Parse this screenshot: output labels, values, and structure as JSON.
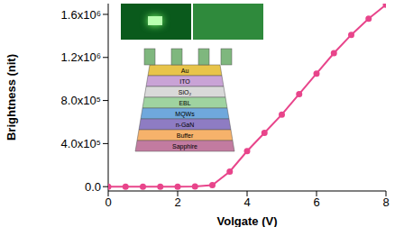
{
  "chart_data": {
    "type": "line",
    "x_label": "Volgate (V)",
    "y_label": "Brightness (nit)",
    "x": [
      0,
      0.5,
      1,
      1.5,
      2,
      2.5,
      3,
      3.5,
      4,
      4.5,
      5,
      5.5,
      6,
      6.5,
      7,
      7.5,
      8
    ],
    "values": [
      0,
      0,
      0,
      0,
      0,
      2000,
      15000,
      140000,
      330000,
      500000,
      670000,
      860000,
      1050000,
      1240000,
      1410000,
      1560000,
      1690000
    ],
    "color": "#e8458b",
    "marker": "circle",
    "line_style": "solid",
    "xlim": [
      0,
      8
    ],
    "xticks": [
      0,
      2,
      4,
      6,
      8
    ],
    "ylim": [
      -40000,
      1700000
    ],
    "yticks": [
      {
        "value": 0,
        "label": "0.0"
      },
      {
        "value": 400000,
        "label": "4.0x10⁵"
      },
      {
        "value": 800000,
        "label": "8.0x10⁵"
      },
      {
        "value": 1200000,
        "label": "1.2x10⁶"
      },
      {
        "value": 1600000,
        "label": "1.6x10⁶"
      }
    ],
    "grid": false
  },
  "inset": {
    "layers": [
      "Au",
      "ITO",
      "SiO₂",
      "EBL",
      "MQWs",
      "n-GaN",
      "Buffer",
      "Sapphire"
    ]
  }
}
